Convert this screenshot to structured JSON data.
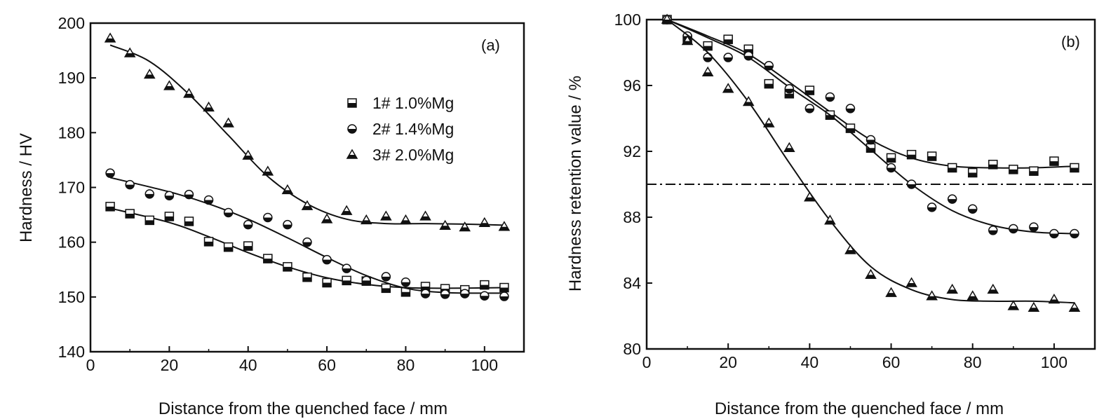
{
  "chart_data": [
    {
      "id": "a",
      "type": "scatter",
      "panel_label": "(a)",
      "xlabel": "Distance from the quenched face / mm",
      "ylabel": "Hardness / HV",
      "xlim": [
        0,
        110
      ],
      "ylim": [
        140,
        200
      ],
      "xticks": [
        0,
        20,
        40,
        60,
        80,
        100
      ],
      "yticks": [
        140,
        150,
        160,
        170,
        180,
        190,
        200
      ],
      "grid": false,
      "legend_position": "upper-right",
      "series": [
        {
          "name": "1# 1.0%Mg",
          "marker": "half-filled-square",
          "x": [
            5,
            10,
            15,
            20,
            25,
            30,
            35,
            40,
            45,
            50,
            55,
            60,
            65,
            70,
            75,
            80,
            85,
            90,
            95,
            100,
            105
          ],
          "y": [
            166.5,
            165.2,
            164.0,
            164.7,
            163.8,
            160.1,
            159.1,
            159.3,
            157.0,
            155.5,
            153.6,
            152.6,
            153.0,
            152.9,
            151.6,
            150.9,
            151.9,
            151.5,
            151.3,
            152.2,
            151.7
          ],
          "fit_x": [
            5,
            20,
            30,
            40,
            50,
            60,
            70,
            80,
            90,
            105
          ],
          "fit_y": [
            166.2,
            163.6,
            161.0,
            158.1,
            155.5,
            153.5,
            152.3,
            151.7,
            151.6,
            151.7
          ]
        },
        {
          "name": "2# 1.4%Mg",
          "marker": "half-filled-circle",
          "x": [
            5,
            10,
            15,
            20,
            25,
            30,
            35,
            40,
            45,
            50,
            55,
            60,
            65,
            70,
            75,
            80,
            85,
            90,
            95,
            100,
            105
          ],
          "y": [
            172.6,
            170.5,
            168.8,
            168.5,
            168.7,
            167.7,
            165.4,
            163.2,
            164.5,
            163.2,
            160.0,
            156.8,
            155.2,
            153.0,
            153.7,
            152.7,
            150.6,
            150.5,
            150.6,
            150.2,
            150.1
          ],
          "fit_x": [
            5,
            20,
            30,
            40,
            50,
            60,
            70,
            80,
            90,
            105
          ],
          "fit_y": [
            171.8,
            169.2,
            167.0,
            164.2,
            160.8,
            157.2,
            153.9,
            151.6,
            150.8,
            150.7
          ]
        },
        {
          "name": "3# 2.0%Mg",
          "marker": "half-filled-triangle",
          "x": [
            5,
            10,
            15,
            20,
            25,
            30,
            35,
            40,
            45,
            50,
            55,
            60,
            65,
            70,
            75,
            80,
            85,
            90,
            95,
            100,
            105
          ],
          "y": [
            197.2,
            194.5,
            190.6,
            188.5,
            187.1,
            184.6,
            181.7,
            175.8,
            172.9,
            169.5,
            166.6,
            164.2,
            165.7,
            164.0,
            164.7,
            164.0,
            164.7,
            163.0,
            162.7,
            163.5,
            162.8
          ],
          "fit_x": [
            5,
            15,
            25,
            35,
            45,
            55,
            65,
            75,
            85,
            95,
            105
          ],
          "fit_y": [
            196.0,
            193.0,
            187.0,
            179.5,
            172.0,
            167.0,
            164.2,
            163.4,
            163.4,
            163.3,
            163.1
          ]
        }
      ]
    },
    {
      "id": "b",
      "type": "scatter",
      "panel_label": "(b)",
      "xlabel": "Distance from the quenched face / mm",
      "ylabel": "Hardness retention value / %",
      "xlim": [
        0,
        110
      ],
      "ylim": [
        80,
        100
      ],
      "xticks": [
        0,
        20,
        40,
        60,
        80,
        100
      ],
      "yticks": [
        80,
        84,
        88,
        92,
        96,
        100
      ],
      "grid": false,
      "reference_line": {
        "y": 90,
        "style": "dash-dot"
      },
      "series": [
        {
          "name": "1# 1.0%Mg",
          "marker": "half-filled-square",
          "x": [
            5,
            10,
            15,
            20,
            25,
            30,
            35,
            40,
            45,
            50,
            55,
            60,
            65,
            70,
            75,
            80,
            85,
            90,
            95,
            100,
            105
          ],
          "y": [
            100,
            98.8,
            98.4,
            98.8,
            98.2,
            96.1,
            95.5,
            95.7,
            94.2,
            93.4,
            92.2,
            91.6,
            91.8,
            91.7,
            91.0,
            90.7,
            91.2,
            90.9,
            90.8,
            91.4,
            91.0
          ],
          "fit_x": [
            5,
            15,
            25,
            35,
            45,
            55,
            65,
            75,
            85,
            95,
            105
          ],
          "fit_y": [
            100,
            99.0,
            97.9,
            96.2,
            94.4,
            92.7,
            91.6,
            91.1,
            91.0,
            91.0,
            91.1
          ]
        },
        {
          "name": "2# 1.4%Mg",
          "marker": "half-filled-circle",
          "x": [
            5,
            10,
            15,
            20,
            25,
            30,
            35,
            40,
            45,
            50,
            55,
            60,
            65,
            70,
            75,
            80,
            85,
            90,
            95,
            100,
            105
          ],
          "y": [
            100,
            99.0,
            97.7,
            97.7,
            97.8,
            97.2,
            95.8,
            94.6,
            95.3,
            94.6,
            92.7,
            91.0,
            90.0,
            88.6,
            89.1,
            88.5,
            87.2,
            87.3,
            87.4,
            87.0,
            87.0
          ],
          "fit_x": [
            5,
            15,
            25,
            35,
            45,
            55,
            65,
            75,
            85,
            95,
            105
          ],
          "fit_y": [
            100,
            98.9,
            97.7,
            95.9,
            94.2,
            92.1,
            90.0,
            88.4,
            87.5,
            87.1,
            87.0
          ]
        },
        {
          "name": "3# 2.0%Mg",
          "marker": "half-filled-triangle",
          "x": [
            5,
            10,
            15,
            20,
            25,
            30,
            35,
            40,
            45,
            50,
            55,
            60,
            65,
            70,
            75,
            80,
            85,
            90,
            95,
            100,
            105
          ],
          "y": [
            100,
            98.7,
            96.8,
            95.8,
            95.0,
            93.7,
            92.2,
            89.2,
            87.8,
            86.0,
            84.5,
            83.4,
            84.0,
            83.2,
            83.6,
            83.2,
            83.6,
            82.6,
            82.5,
            83.0,
            82.5
          ],
          "fit_x": [
            5,
            15,
            25,
            35,
            45,
            55,
            65,
            75,
            85,
            95,
            105
          ],
          "fit_y": [
            100,
            98.0,
            95.0,
            91.3,
            87.8,
            85.0,
            83.6,
            83.0,
            82.9,
            82.9,
            82.8
          ]
        }
      ]
    }
  ]
}
